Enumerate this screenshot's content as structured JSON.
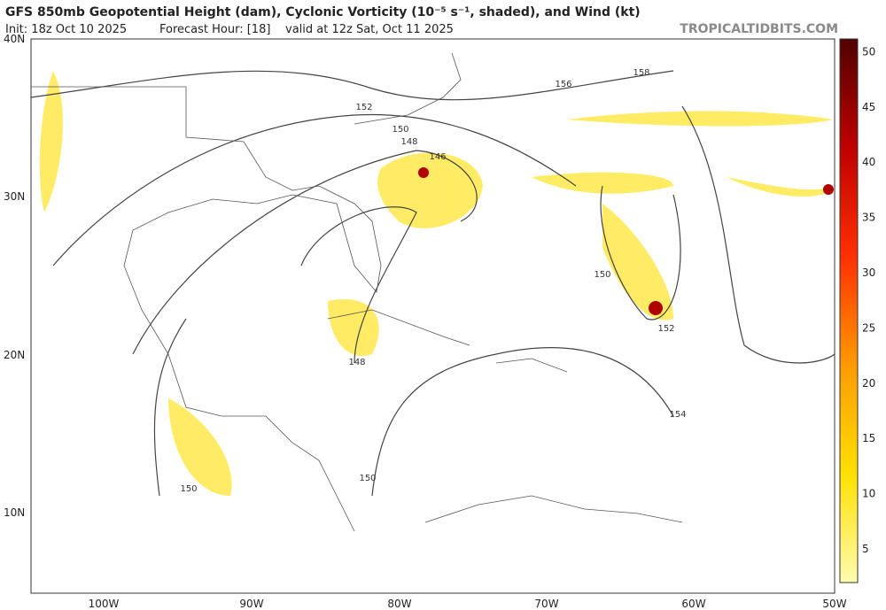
{
  "header": {
    "title": "GFS 850mb Geopotential Height (dam), Cyclonic Vorticity (10⁻⁵ s⁻¹, shaded), and Wind (kt)",
    "init": "Init: 18z Oct 10 2025",
    "forecast_hour": "Forecast Hour: [18]",
    "valid": "valid at 12z Sat, Oct 11 2025",
    "source": "TROPICALTIDBITS.COM"
  },
  "map": {
    "lat_labels": [
      "40N",
      "30N",
      "20N",
      "10N"
    ],
    "lon_labels": [
      "100W",
      "90W",
      "80W",
      "70W",
      "60W",
      "50W"
    ],
    "contour_labels": [
      "156",
      "158",
      "152",
      "150",
      "148",
      "146",
      "150",
      "152",
      "148",
      "154",
      "150",
      "150"
    ]
  },
  "colorbar": {
    "ticks": [
      5,
      10,
      15,
      20,
      25,
      30,
      35,
      40,
      45,
      50
    ]
  }
}
